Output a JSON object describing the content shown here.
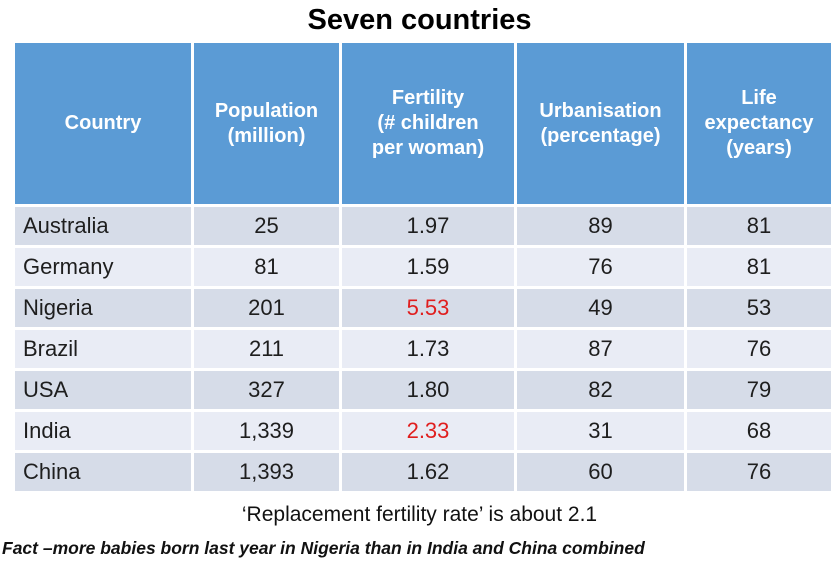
{
  "title": "Seven countries",
  "caption": "‘Replacement fertility rate’ is about 2.1",
  "fact": "Fact –more babies born last year in Nigeria than in India and China combined",
  "colors": {
    "header_bg": "#5B9BD5",
    "header_text": "#FFFFFF",
    "row_odd": "#D6DCE8",
    "row_even": "#E9ECF5",
    "highlight_red": "#E01E1E",
    "body_text": "#1E1E1E"
  },
  "table": {
    "headers": [
      "Country",
      "Population\n(million)",
      "Fertility\n(# children\nper woman)",
      "Urbanisation\n(percentage)",
      "Life\nexpectancy\n(years)"
    ],
    "rows": [
      [
        "Australia",
        "25",
        "1.97",
        "89",
        "81"
      ],
      [
        "Germany",
        "81",
        "1.59",
        "76",
        "81"
      ],
      [
        "Nigeria",
        "201",
        "5.53",
        "49",
        "53"
      ],
      [
        "Brazil",
        "211",
        "1.73",
        "87",
        "76"
      ],
      [
        "USA",
        "327",
        "1.80",
        "82",
        "79"
      ],
      [
        "India",
        "1,339",
        "2.33",
        "31",
        "68"
      ],
      [
        "China",
        "1,393",
        "1.62",
        "60",
        "76"
      ]
    ],
    "highlighted_cells": [
      {
        "row": "Nigeria",
        "column": "Fertility (# children per woman)",
        "value": "5.53",
        "color": "#E01E1E"
      },
      {
        "row": "India",
        "column": "Fertility (# children per woman)",
        "value": "2.33",
        "color": "#E01E1E"
      }
    ]
  },
  "chart_data": {
    "type": "table",
    "title": "Seven countries",
    "columns": [
      "Country",
      "Population (million)",
      "Fertility (# children per woman)",
      "Urbanisation (percentage)",
      "Life expectancy (years)"
    ],
    "rows": [
      [
        "Australia",
        25,
        1.97,
        89,
        81
      ],
      [
        "Germany",
        81,
        1.59,
        76,
        81
      ],
      [
        "Nigeria",
        201,
        5.53,
        49,
        53
      ],
      [
        "Brazil",
        211,
        1.73,
        87,
        76
      ],
      [
        "USA",
        327,
        1.8,
        82,
        79
      ],
      [
        "India",
        1339,
        2.33,
        31,
        68
      ],
      [
        "China",
        1393,
        1.62,
        60,
        76
      ]
    ],
    "highlighted_values": [
      {
        "country": "Nigeria",
        "metric": "Fertility (# children per woman)",
        "value": 5.53
      },
      {
        "country": "India",
        "metric": "Fertility (# children per woman)",
        "value": 2.33
      }
    ],
    "annotations": [
      "‘Replacement fertility rate’ is about 2.1",
      "Fact –more babies born last year in Nigeria than in India and China combined"
    ]
  }
}
